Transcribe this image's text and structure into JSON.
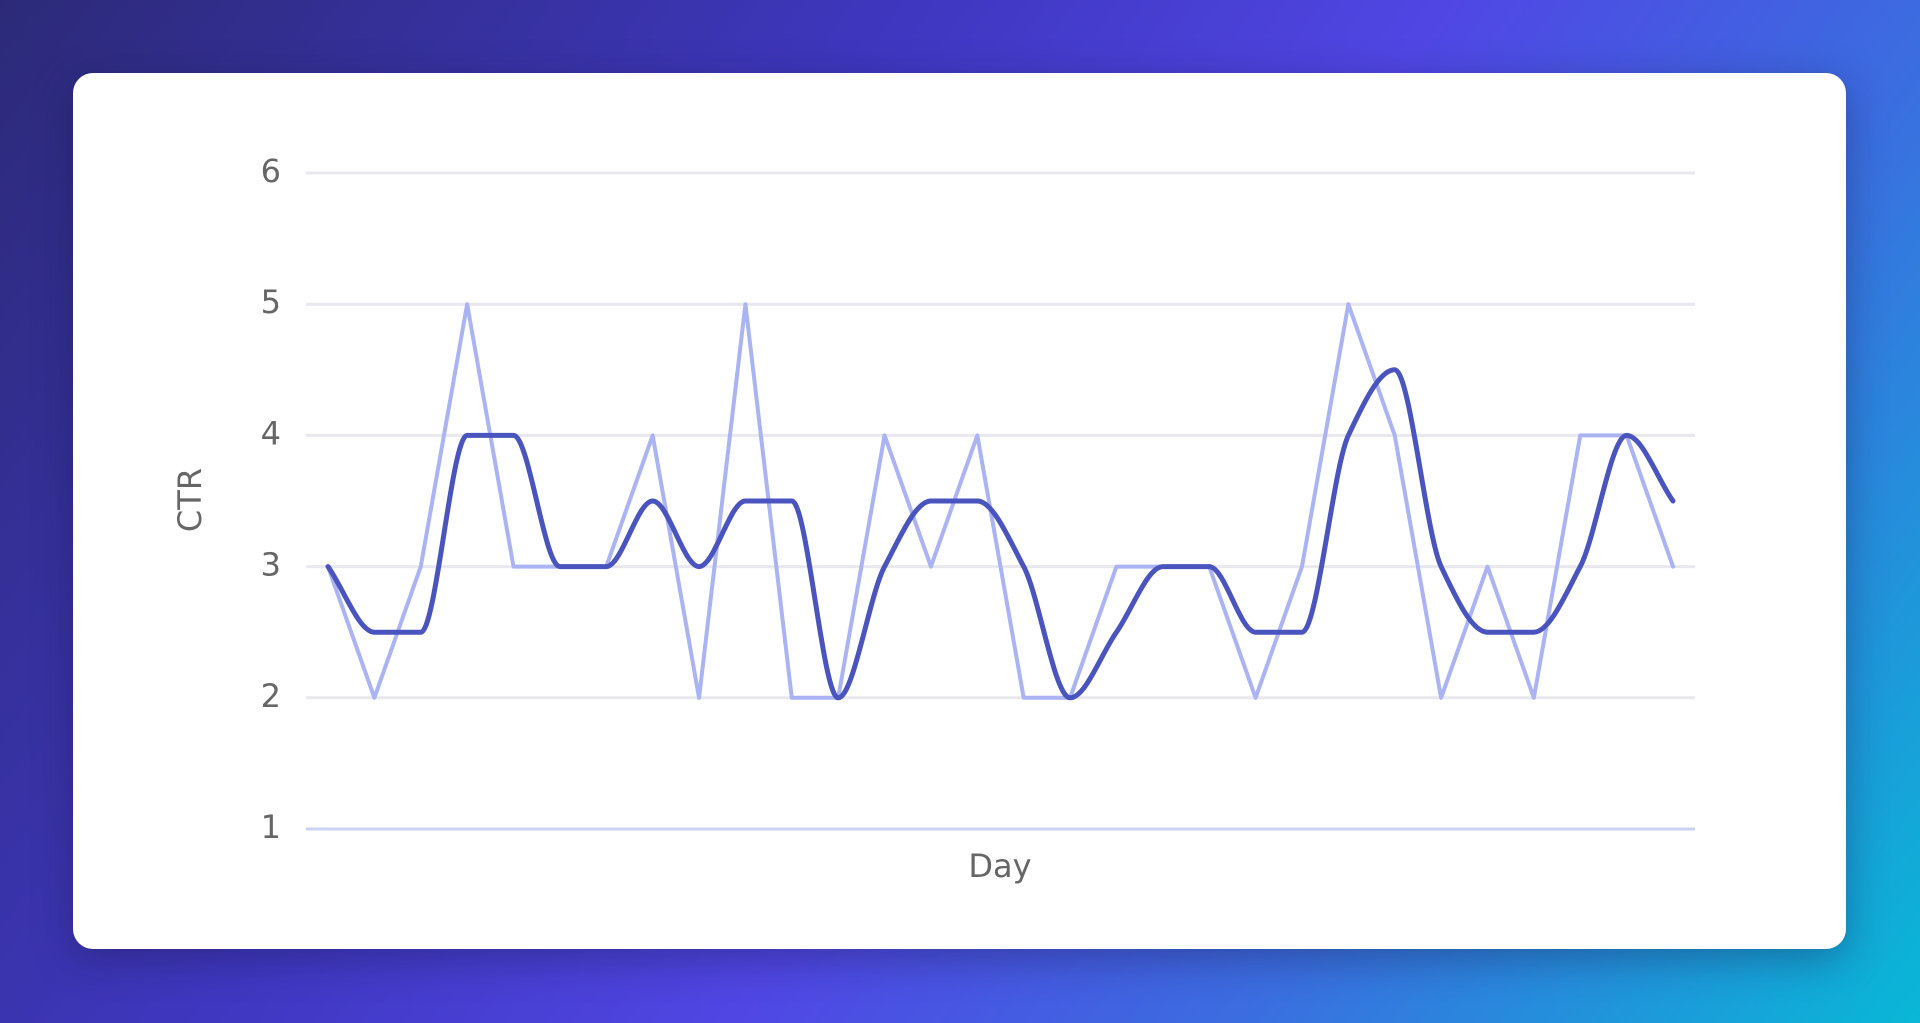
{
  "chart_data": {
    "type": "line",
    "x_label": "Day",
    "y_label": "CTR",
    "categories": [
      null,
      null,
      null,
      null,
      null,
      null,
      null,
      null,
      null,
      null,
      null,
      null,
      null,
      null,
      null,
      null,
      null,
      null,
      null,
      null,
      null,
      null,
      null,
      null,
      null,
      null,
      null,
      null,
      null,
      null
    ],
    "series": [
      {
        "color": "#aab4f4",
        "curve": "linear",
        "values": [
          3,
          2,
          3,
          5,
          3,
          3,
          3,
          4,
          2,
          5,
          2,
          2,
          4,
          3,
          4,
          2,
          2,
          3,
          3,
          3,
          2,
          3,
          5,
          4,
          2,
          3,
          2,
          4,
          4,
          3
        ]
      },
      {
        "color": "#4a54bf",
        "curve": "smooth",
        "values": [
          3,
          2.5,
          2.5,
          4,
          4,
          3,
          3,
          3.5,
          3,
          3.5,
          3.5,
          2,
          3,
          3.5,
          3.5,
          3,
          2,
          2.5,
          3,
          3,
          2.5,
          2.5,
          4,
          4.5,
          3,
          2.5,
          2.5,
          3,
          4,
          3.5
        ]
      }
    ],
    "ylim": [
      1,
      6
    ],
    "yticks": [
      1,
      2,
      3,
      4,
      5,
      6
    ],
    "grid": true
  }
}
